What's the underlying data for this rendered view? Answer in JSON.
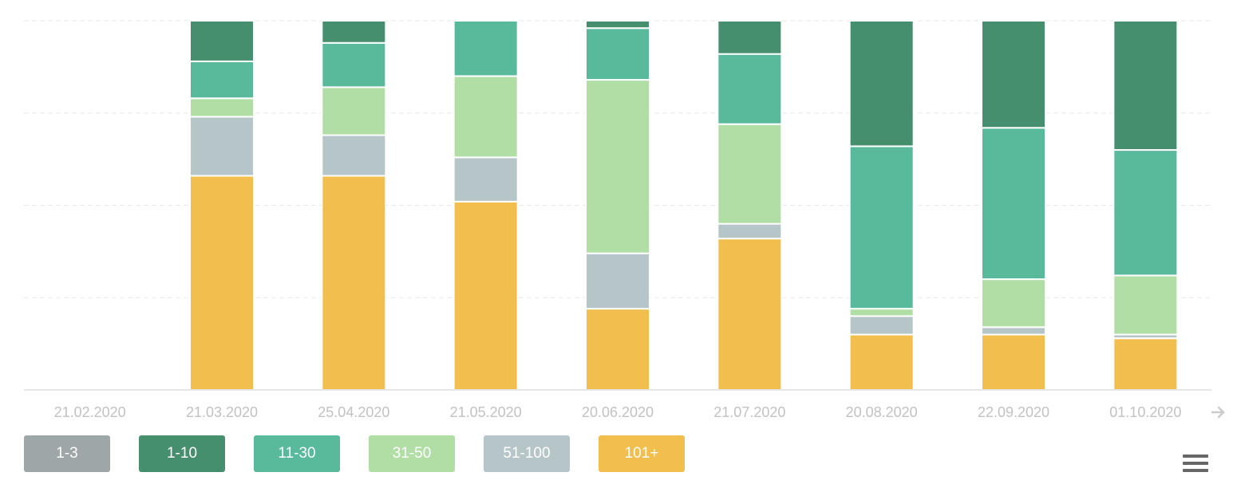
{
  "chart_data": {
    "type": "bar",
    "stacked": true,
    "normalized": true,
    "categories": [
      "21.02.2020",
      "21.03.2020",
      "25.04.2020",
      "21.05.2020",
      "20.06.2020",
      "21.07.2020",
      "20.08.2020",
      "22.09.2020",
      "01.10.2020"
    ],
    "ylim": [
      0,
      1
    ],
    "grid": true,
    "legend_position": "bottom-left",
    "series": [
      {
        "name": "101+",
        "color": "#f2be4e",
        "values": [
          0,
          0.58,
          0.58,
          0.51,
          0.22,
          0.41,
          0.15,
          0.15,
          0.14
        ]
      },
      {
        "name": "51-100",
        "color": "#b6c5c7",
        "values": [
          0,
          0.16,
          0.11,
          0.12,
          0.15,
          0.04,
          0.05,
          0.02,
          0.01
        ]
      },
      {
        "name": "31-50",
        "color": "#b0dea5",
        "values": [
          0,
          0.05,
          0.13,
          0.22,
          0.47,
          0.27,
          0.02,
          0.13,
          0.16
        ]
      },
      {
        "name": "11-30",
        "color": "#58b99b",
        "values": [
          0,
          0.1,
          0.12,
          0.15,
          0.14,
          0.19,
          0.44,
          0.41,
          0.34
        ]
      },
      {
        "name": "1-10",
        "color": "#468f6e",
        "values": [
          0,
          0.11,
          0.06,
          0,
          0.02,
          0.09,
          0.34,
          0.29,
          0.35
        ]
      },
      {
        "name": "1-3",
        "color": "#9ea6a7",
        "values": [
          0,
          0,
          0,
          0,
          0,
          0,
          0,
          0,
          0
        ]
      }
    ]
  },
  "legend": [
    {
      "label": "1-3",
      "color": "#9ea6a7"
    },
    {
      "label": "1-10",
      "color": "#468f6e"
    },
    {
      "label": "11-30",
      "color": "#58b99b"
    },
    {
      "label": "31-50",
      "color": "#b0dea5"
    },
    {
      "label": "51-100",
      "color": "#b6c5c7"
    },
    {
      "label": "101+",
      "color": "#f2be4e"
    }
  ],
  "icons": {
    "scroll": "arrow-right-icon",
    "menu": "hamburger-menu-icon"
  }
}
